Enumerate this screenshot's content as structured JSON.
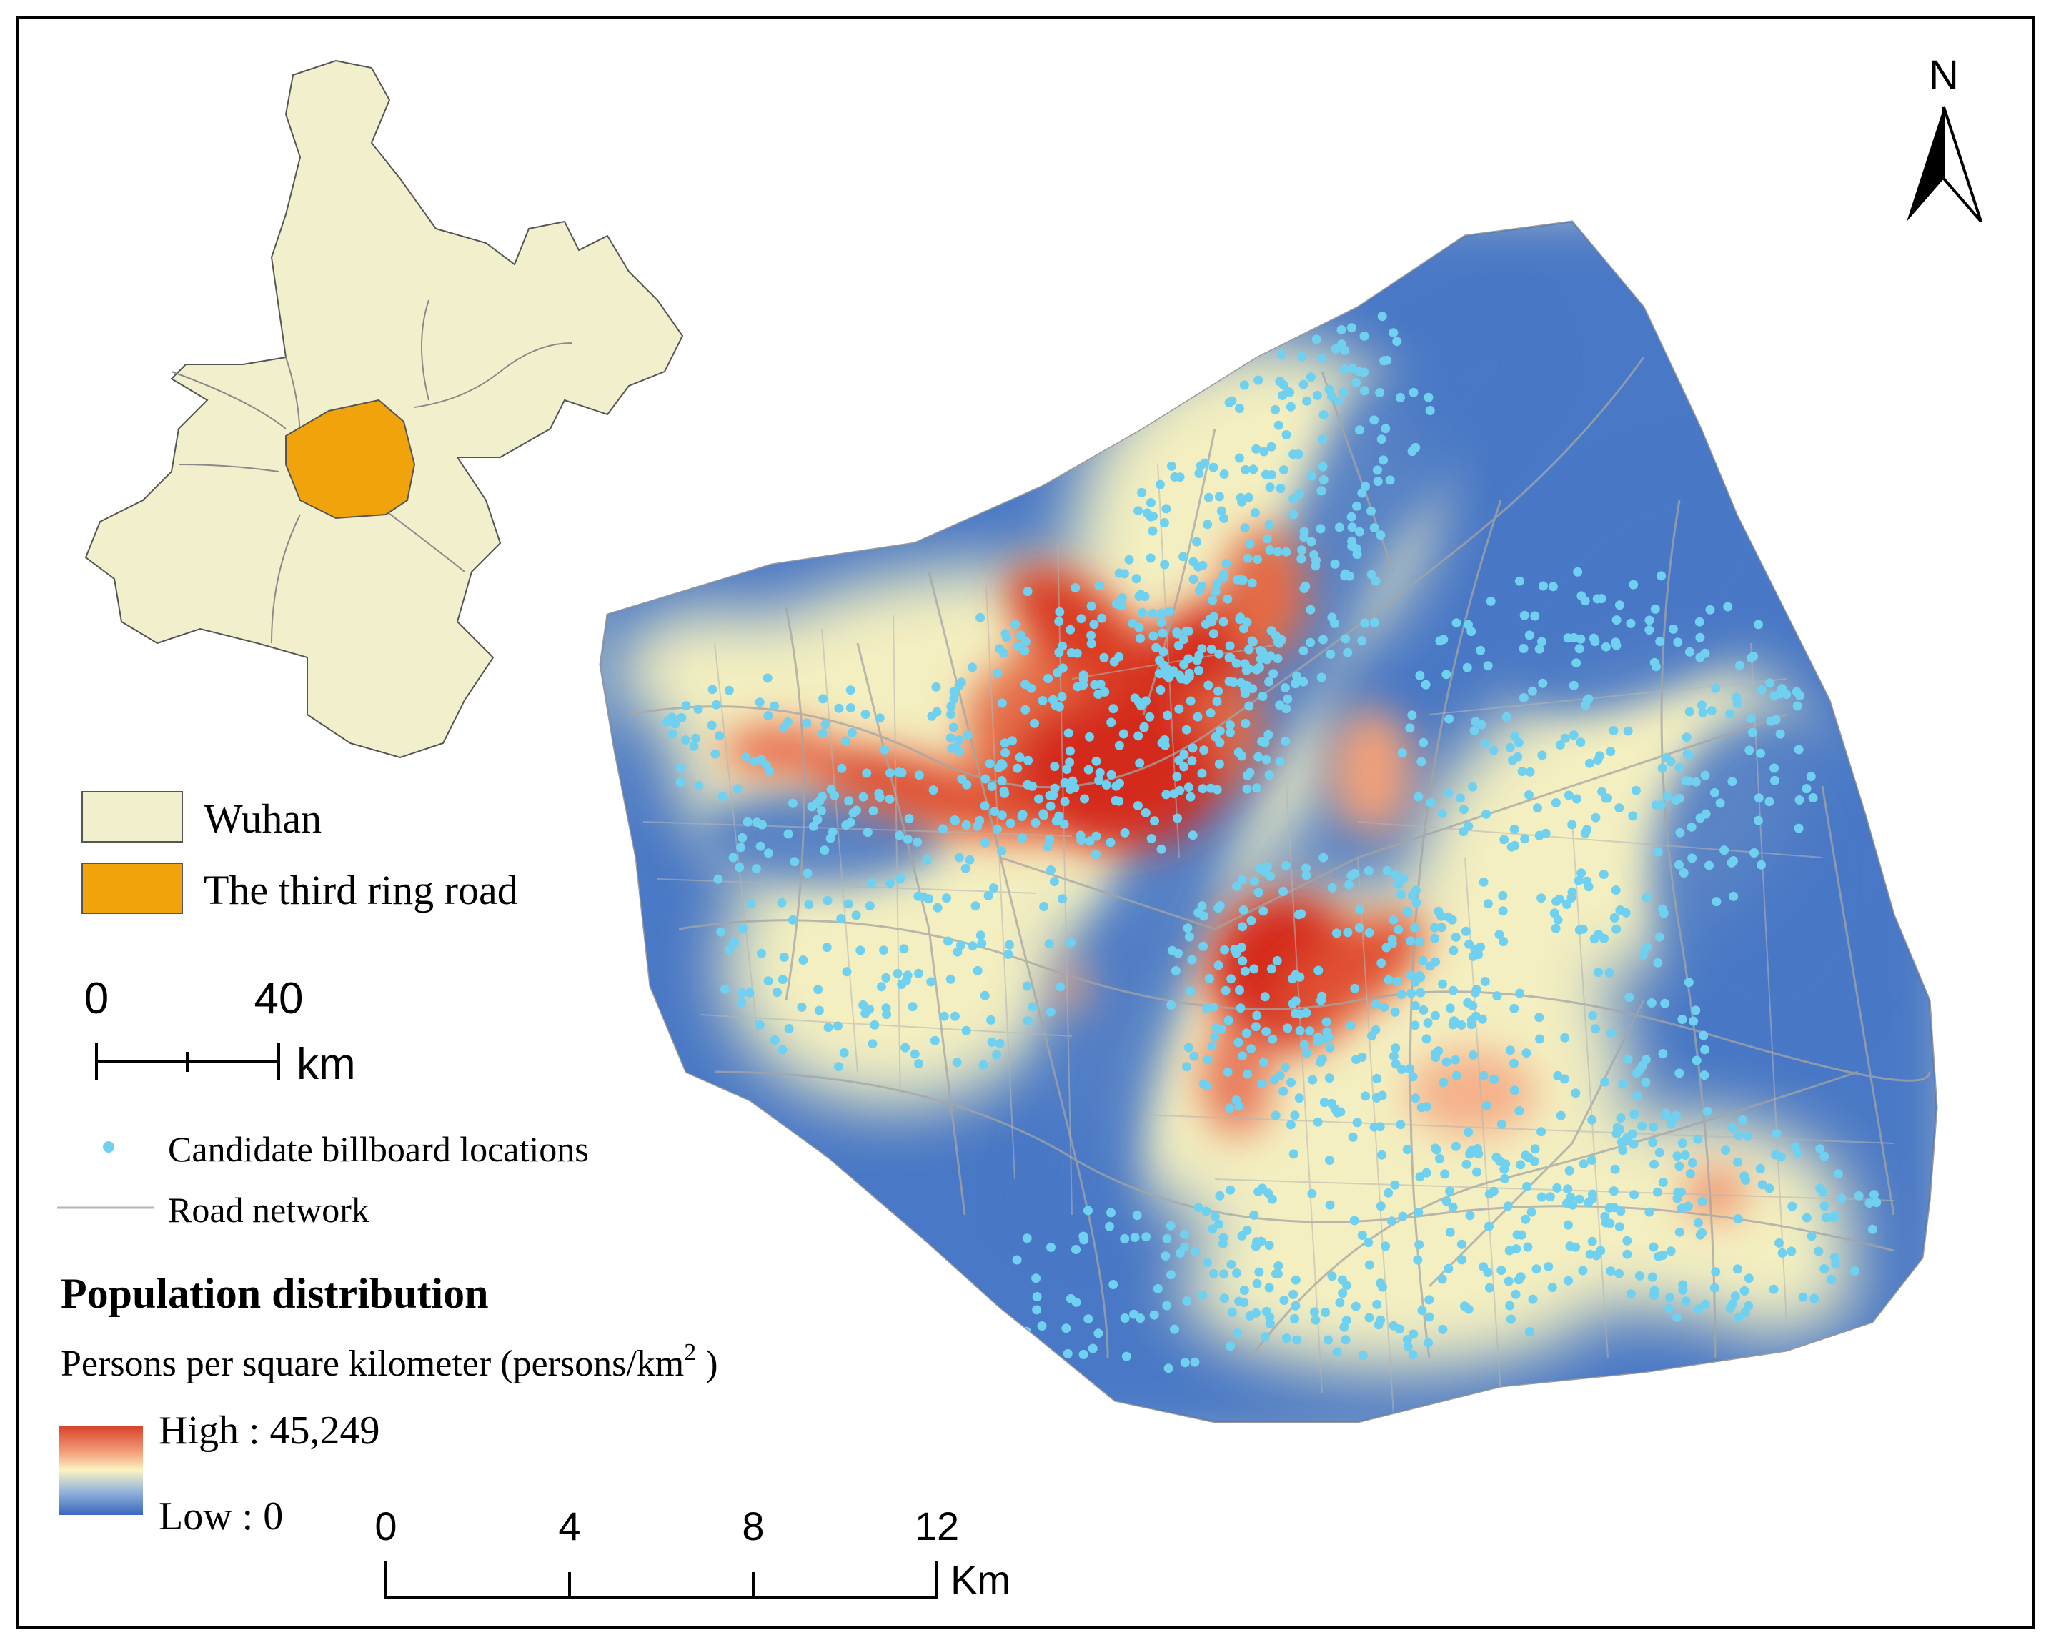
{
  "north_arrow": {
    "label": "N"
  },
  "inset_legend": {
    "items": [
      {
        "label": "Wuhan",
        "color": "#f2f0cc"
      },
      {
        "label": "The third ring road",
        "color": "#f0a30a"
      }
    ]
  },
  "inset_scale": {
    "ticks": [
      "0",
      "40"
    ],
    "unit": "km"
  },
  "legend": {
    "points_label": "Candidate billboard locations",
    "points_color": "#6fd0ef",
    "roads_label": "Road network",
    "roads_color": "#a0a0a0",
    "population_title": "Population distribution",
    "population_subtitle_prefix": "Persons per square kilometer (persons/km",
    "population_subtitle_sup": "2",
    "population_subtitle_suffix": ")",
    "high_label": "High : 45,249",
    "low_label": "Low : 0",
    "ramp_colors": [
      "#d7402a",
      "#f3a07a",
      "#fbf3c2",
      "#8fb0dc",
      "#3a66bd"
    ]
  },
  "main_scale": {
    "ticks": [
      "0",
      "4",
      "8",
      "12"
    ],
    "unit": "Km"
  },
  "colors": {
    "low": "#4472c4",
    "mid": "#fdf6c0",
    "high": "#d42b1a"
  }
}
